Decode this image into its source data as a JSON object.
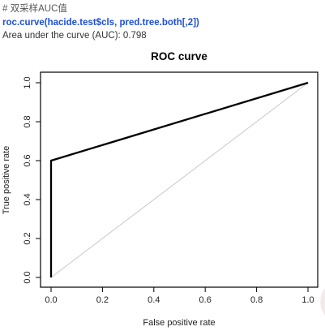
{
  "console": {
    "comment": "# 双采样AUC值",
    "command": "roc.curve(hacide.test$cls, pred.tree.both[,2])",
    "output": "Area under the curve (AUC): 0.798"
  },
  "chart_data": {
    "type": "line",
    "title": "ROC curve",
    "xlabel": "False positive rate",
    "ylabel": "True positive rate",
    "xlim": [
      0,
      1
    ],
    "ylim": [
      0,
      1
    ],
    "xticks": [
      "0.0",
      "0.2",
      "0.4",
      "0.6",
      "0.8",
      "1.0"
    ],
    "yticks": [
      "0.0",
      "0.2",
      "0.4",
      "0.6",
      "0.8",
      "1.0"
    ],
    "grid": false,
    "series": [
      {
        "x": [
          0.0,
          0.0,
          1.0
        ],
        "y": [
          0.0,
          0.6,
          1.0
        ],
        "color": "#000000"
      }
    ],
    "reference_line": {
      "x": [
        0,
        1
      ],
      "y": [
        0,
        1
      ],
      "color": "#c8c8c8"
    }
  }
}
